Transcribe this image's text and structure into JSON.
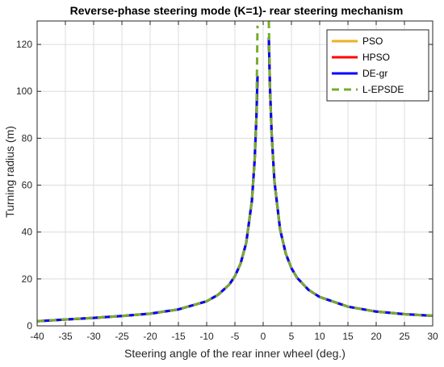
{
  "chart_data": {
    "type": "line",
    "title": "Reverse-phase steering mode (K=1)- rear steering mechanism",
    "xlabel": "Steering angle of the rear inner wheel (deg.)",
    "ylabel": "Turning radius (m)",
    "xlim": [
      -40,
      30
    ],
    "ylim": [
      0,
      130
    ],
    "xticks": [
      -40,
      -35,
      -30,
      -25,
      -20,
      -15,
      -10,
      -5,
      0,
      5,
      10,
      15,
      20,
      25,
      30
    ],
    "yticks": [
      0,
      20,
      40,
      60,
      80,
      100,
      120
    ],
    "grid": true,
    "legend_position": "top-right",
    "x": [
      -40,
      -35,
      -30,
      -25,
      -20,
      -15,
      -10,
      -8,
      -6,
      -5,
      -4,
      -3,
      -2,
      -1.5,
      -1.2,
      -1,
      1,
      1.2,
      1.5,
      2,
      3,
      4,
      5,
      6,
      8,
      10,
      15,
      20,
      25,
      30
    ],
    "branches": [
      {
        "x_range": [
          -40,
          -1
        ],
        "note": ""
      },
      {
        "x_range": [
          1,
          30
        ],
        "note": ""
      }
    ],
    "series": [
      {
        "name": "PSO",
        "color": "#EDB120",
        "style": "solid",
        "values": [
          2.0,
          2.7,
          3.4,
          4.2,
          5.2,
          7.0,
          10.5,
          13.2,
          17.6,
          21.2,
          26.5,
          35.4,
          53.2,
          71.0,
          88.8,
          106.6,
          123.0,
          102.0,
          82.0,
          61.5,
          41.0,
          30.8,
          24.6,
          20.5,
          15.4,
          12.3,
          8.2,
          6.1,
          5.0,
          4.3
        ]
      },
      {
        "name": "HPSO",
        "color": "#FF0000",
        "style": "solid",
        "values": [
          2.0,
          2.7,
          3.4,
          4.2,
          5.2,
          7.0,
          10.5,
          13.2,
          17.6,
          21.2,
          26.5,
          35.4,
          53.2,
          71.0,
          88.8,
          106.6,
          123.0,
          102.0,
          82.0,
          61.5,
          41.0,
          30.8,
          24.6,
          20.5,
          15.4,
          12.3,
          8.2,
          6.1,
          5.0,
          4.3
        ]
      },
      {
        "name": "DE-gr",
        "color": "#0000FF",
        "style": "solid",
        "values": [
          2.0,
          2.7,
          3.4,
          4.2,
          5.2,
          7.0,
          10.5,
          13.2,
          17.6,
          21.2,
          26.5,
          35.4,
          53.2,
          71.0,
          88.8,
          106.6,
          123.0,
          102.0,
          82.0,
          61.5,
          41.0,
          30.8,
          24.6,
          20.5,
          15.4,
          12.3,
          8.2,
          6.1,
          5.0,
          4.3
        ]
      },
      {
        "name": "L-EPSDE",
        "color": "#77AC30",
        "style": "dashed",
        "values": [
          2.0,
          2.7,
          3.4,
          4.2,
          5.2,
          7.0,
          10.5,
          13.2,
          17.6,
          21.2,
          26.5,
          35.4,
          53.2,
          71.0,
          88.8,
          128.0,
          130.0,
          102.0,
          82.0,
          61.5,
          41.0,
          30.8,
          24.6,
          20.5,
          15.4,
          12.3,
          8.2,
          6.1,
          5.0,
          4.3
        ]
      }
    ]
  }
}
